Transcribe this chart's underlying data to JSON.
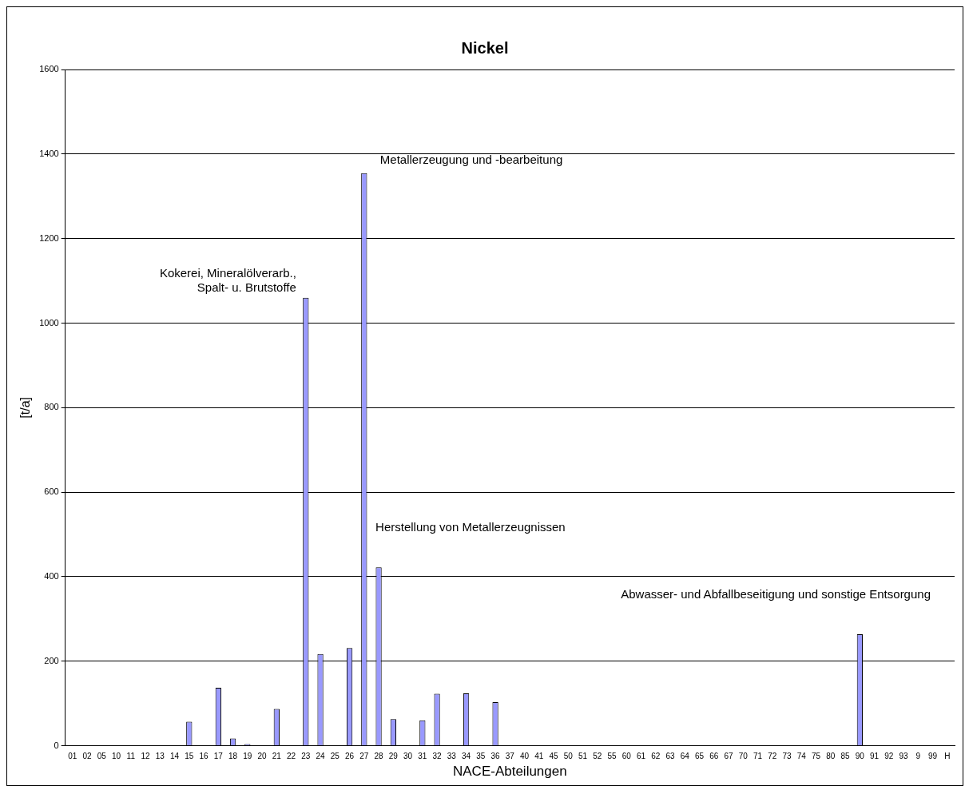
{
  "chart_data": {
    "type": "bar",
    "title": "Nickel",
    "xlabel": "NACE-Abteilungen",
    "ylabel": "[t/a]",
    "categories": [
      "01",
      "02",
      "05",
      "10",
      "11",
      "12",
      "13",
      "14",
      "15",
      "16",
      "17",
      "18",
      "19",
      "20",
      "21",
      "22",
      "23",
      "24",
      "25",
      "26",
      "27",
      "28",
      "29",
      "30",
      "31",
      "32",
      "33",
      "34",
      "35",
      "36",
      "37",
      "40",
      "41",
      "45",
      "50",
      "51",
      "52",
      "55",
      "60",
      "61",
      "62",
      "63",
      "64",
      "65",
      "66",
      "67",
      "70",
      "71",
      "72",
      "73",
      "74",
      "75",
      "80",
      "85",
      "90",
      "91",
      "92",
      "93",
      "9",
      "99",
      "H"
    ],
    "values": [
      0,
      0,
      0,
      0,
      0,
      0,
      0,
      0,
      57,
      0,
      137,
      17,
      4,
      0,
      87,
      0,
      1060,
      217,
      0,
      231,
      1355,
      422,
      63,
      0,
      60,
      123,
      null,
      124,
      0,
      103,
      0,
      0,
      0,
      0,
      0,
      0,
      0,
      0,
      0,
      0,
      0,
      0,
      0,
      0,
      0,
      0,
      0,
      0,
      0,
      0,
      0,
      0,
      0,
      0,
      264,
      0,
      0,
      null,
      0,
      0,
      0
    ],
    "color": "#9999ff",
    "ylim": [
      0,
      1600
    ],
    "yticks": [
      0,
      200,
      400,
      600,
      800,
      1000,
      1200,
      1400,
      1600
    ],
    "grid": "y",
    "annotations": [
      {
        "text": "Kokerei, Mineralölverarb.,\nSpalt- u. Brutstoffe",
        "x": "23",
        "y": 1060
      },
      {
        "text": "Metallerzeugung und -bearbeitung",
        "x": "27",
        "y": 1355
      },
      {
        "text": "Herstellung von Metallerzeugnissen",
        "x": "28",
        "y": 422
      },
      {
        "text": "Abwasser- und Abfallbeseitigung und sonstige Entsorgung",
        "x": "90",
        "y": 264
      }
    ]
  }
}
